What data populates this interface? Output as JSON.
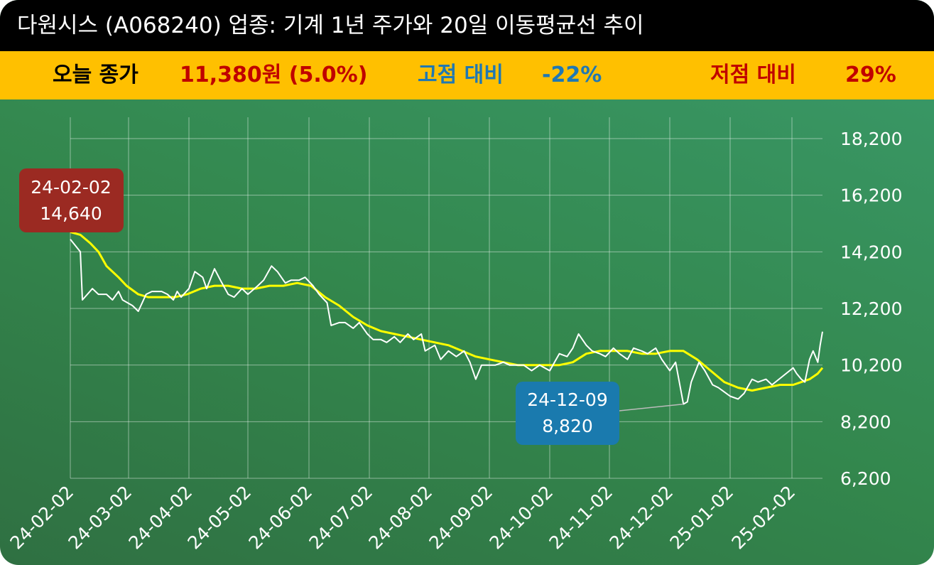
{
  "title": "다원시스 (A068240) 업종: 기계 1년 주가와 20일 이동평균선 추이",
  "stats": {
    "close_label": "오늘 종가",
    "close_value": "11,380원 (5.0%)",
    "high_label": "고점 대비",
    "high_value": "-22%",
    "low_label": "저점 대비",
    "low_value": "29%"
  },
  "colors": {
    "title_bg": "#000000",
    "stats_bg": "#ffc000",
    "close_label": "#000000",
    "close_value": "#c00000",
    "high": "#1f78b4",
    "low": "#c00000",
    "price_line": "#ffffff",
    "ma_line": "#ffff00",
    "high_callout": "#9b2a22",
    "low_callout": "#1a7aae"
  },
  "chart_data": {
    "type": "line",
    "ylim": [
      6200,
      18200
    ],
    "y_ticks": [
      "18,200",
      "16,200",
      "14,200",
      "12,200",
      "10,200",
      "8,200",
      "6,200"
    ],
    "y_tick_values": [
      18200,
      16200,
      14200,
      12200,
      10200,
      8200,
      6200
    ],
    "x_start": "2024-02-02",
    "x_end": "2025-02-28",
    "x_tick_labels": [
      "24-02-02",
      "24-03-02",
      "24-04-02",
      "24-05-02",
      "24-06-02",
      "24-07-02",
      "24-08-02",
      "24-09-02",
      "24-10-02",
      "24-11-02",
      "24-12-02",
      "25-01-02",
      "25-02-02"
    ],
    "x_tick_dates": [
      "2024-02-02",
      "2024-03-02",
      "2024-04-02",
      "2024-05-02",
      "2024-06-02",
      "2024-07-02",
      "2024-08-02",
      "2024-09-02",
      "2024-10-02",
      "2024-11-02",
      "2024-12-02",
      "2025-01-02",
      "2025-02-02"
    ],
    "grid": true,
    "series": [
      {
        "name": "",
        "color": "#ffffff",
        "points": [
          [
            "2024-02-02",
            14640
          ],
          [
            "2024-02-07",
            14200
          ],
          [
            "2024-02-08",
            12500
          ],
          [
            "2024-02-13",
            12900
          ],
          [
            "2024-02-16",
            12700
          ],
          [
            "2024-02-20",
            12700
          ],
          [
            "2024-02-23",
            12500
          ],
          [
            "2024-02-26",
            12800
          ],
          [
            "2024-02-28",
            12500
          ],
          [
            "2024-03-04",
            12300
          ],
          [
            "2024-03-07",
            12100
          ],
          [
            "2024-03-11",
            12700
          ],
          [
            "2024-03-14",
            12800
          ],
          [
            "2024-03-19",
            12800
          ],
          [
            "2024-03-22",
            12700
          ],
          [
            "2024-03-25",
            12500
          ],
          [
            "2024-03-27",
            12800
          ],
          [
            "2024-03-29",
            12600
          ],
          [
            "2024-04-02",
            12900
          ],
          [
            "2024-04-05",
            13500
          ],
          [
            "2024-04-09",
            13300
          ],
          [
            "2024-04-11",
            12900
          ],
          [
            "2024-04-15",
            13600
          ],
          [
            "2024-04-18",
            13200
          ],
          [
            "2024-04-22",
            12700
          ],
          [
            "2024-04-25",
            12600
          ],
          [
            "2024-04-29",
            12900
          ],
          [
            "2024-05-02",
            12700
          ],
          [
            "2024-05-07",
            13000
          ],
          [
            "2024-05-10",
            13200
          ],
          [
            "2024-05-14",
            13700
          ],
          [
            "2024-05-17",
            13500
          ],
          [
            "2024-05-21",
            13100
          ],
          [
            "2024-05-24",
            13200
          ],
          [
            "2024-05-28",
            13200
          ],
          [
            "2024-05-31",
            13300
          ],
          [
            "2024-06-04",
            13000
          ],
          [
            "2024-06-07",
            12700
          ],
          [
            "2024-06-11",
            12400
          ],
          [
            "2024-06-13",
            11600
          ],
          [
            "2024-06-17",
            11700
          ],
          [
            "2024-06-20",
            11700
          ],
          [
            "2024-06-24",
            11500
          ],
          [
            "2024-06-27",
            11700
          ],
          [
            "2024-07-01",
            11300
          ],
          [
            "2024-07-04",
            11100
          ],
          [
            "2024-07-08",
            11100
          ],
          [
            "2024-07-11",
            11000
          ],
          [
            "2024-07-15",
            11200
          ],
          [
            "2024-07-18",
            11000
          ],
          [
            "2024-07-22",
            11300
          ],
          [
            "2024-07-25",
            11100
          ],
          [
            "2024-07-29",
            11300
          ],
          [
            "2024-07-31",
            10700
          ],
          [
            "2024-08-05",
            10900
          ],
          [
            "2024-08-08",
            10400
          ],
          [
            "2024-08-12",
            10700
          ],
          [
            "2024-08-16",
            10500
          ],
          [
            "2024-08-20",
            10700
          ],
          [
            "2024-08-23",
            10300
          ],
          [
            "2024-08-26",
            9700
          ],
          [
            "2024-08-29",
            10200
          ],
          [
            "2024-09-02",
            10200
          ],
          [
            "2024-09-05",
            10200
          ],
          [
            "2024-09-09",
            10300
          ],
          [
            "2024-09-12",
            10200
          ],
          [
            "2024-09-19",
            10200
          ],
          [
            "2024-09-23",
            10000
          ],
          [
            "2024-09-27",
            10200
          ],
          [
            "2024-10-02",
            10000
          ],
          [
            "2024-10-07",
            10600
          ],
          [
            "2024-10-11",
            10500
          ],
          [
            "2024-10-14",
            10800
          ],
          [
            "2024-10-17",
            11300
          ],
          [
            "2024-10-21",
            10900
          ],
          [
            "2024-10-24",
            10700
          ],
          [
            "2024-10-28",
            10600
          ],
          [
            "2024-10-31",
            10500
          ],
          [
            "2024-11-04",
            10800
          ],
          [
            "2024-11-07",
            10600
          ],
          [
            "2024-11-11",
            10400
          ],
          [
            "2024-11-14",
            10800
          ],
          [
            "2024-11-18",
            10700
          ],
          [
            "2024-11-21",
            10600
          ],
          [
            "2024-11-25",
            10800
          ],
          [
            "2024-11-28",
            10400
          ],
          [
            "2024-12-02",
            10000
          ],
          [
            "2024-12-05",
            10300
          ],
          [
            "2024-12-09",
            8820
          ],
          [
            "2024-12-11",
            8900
          ],
          [
            "2024-12-13",
            9600
          ],
          [
            "2024-12-17",
            10300
          ],
          [
            "2024-12-20",
            10000
          ],
          [
            "2024-12-24",
            9500
          ],
          [
            "2024-12-27",
            9400
          ],
          [
            "2025-01-02",
            9100
          ],
          [
            "2025-01-06",
            9000
          ],
          [
            "2025-01-09",
            9200
          ],
          [
            "2025-01-13",
            9700
          ],
          [
            "2025-01-16",
            9600
          ],
          [
            "2025-01-20",
            9700
          ],
          [
            "2025-01-23",
            9500
          ],
          [
            "2025-02-03",
            10100
          ],
          [
            "2025-02-06",
            9900
          ],
          [
            "2025-02-10",
            9700
          ],
          [
            "2025-02-13",
            9600
          ],
          [
            "2025-02-17",
            10400
          ],
          [
            "2025-02-20",
            10700
          ],
          [
            "2025-02-24",
            10300
          ],
          [
            "2025-02-26",
            10900
          ],
          [
            "2025-02-28",
            11380
          ]
        ]
      },
      {
        "name": "",
        "color": "#ffff00",
        "points": [
          [
            "2024-02-02",
            14900
          ],
          [
            "2024-02-07",
            14800
          ],
          [
            "2024-02-12",
            14500
          ],
          [
            "2024-02-16",
            14200
          ],
          [
            "2024-02-20",
            13700
          ],
          [
            "2024-02-26",
            13300
          ],
          [
            "2024-03-01",
            13000
          ],
          [
            "2024-03-07",
            12700
          ],
          [
            "2024-03-12",
            12600
          ],
          [
            "2024-03-20",
            12600
          ],
          [
            "2024-03-26",
            12600
          ],
          [
            "2024-04-01",
            12700
          ],
          [
            "2024-04-08",
            12900
          ],
          [
            "2024-04-15",
            13000
          ],
          [
            "2024-04-22",
            13000
          ],
          [
            "2024-04-29",
            12900
          ],
          [
            "2024-05-06",
            12900
          ],
          [
            "2024-05-13",
            13000
          ],
          [
            "2024-05-20",
            13000
          ],
          [
            "2024-05-27",
            13100
          ],
          [
            "2024-06-03",
            13000
          ],
          [
            "2024-06-10",
            12600
          ],
          [
            "2024-06-17",
            12300
          ],
          [
            "2024-06-24",
            11900
          ],
          [
            "2024-07-01",
            11600
          ],
          [
            "2024-07-08",
            11400
          ],
          [
            "2024-07-15",
            11300
          ],
          [
            "2024-07-22",
            11200
          ],
          [
            "2024-07-29",
            11100
          ],
          [
            "2024-08-05",
            11000
          ],
          [
            "2024-08-12",
            10900
          ],
          [
            "2024-08-19",
            10700
          ],
          [
            "2024-08-26",
            10500
          ],
          [
            "2024-09-02",
            10400
          ],
          [
            "2024-09-09",
            10300
          ],
          [
            "2024-09-16",
            10200
          ],
          [
            "2024-09-23",
            10200
          ],
          [
            "2024-09-30",
            10200
          ],
          [
            "2024-10-07",
            10200
          ],
          [
            "2024-10-14",
            10300
          ],
          [
            "2024-10-21",
            10600
          ],
          [
            "2024-10-28",
            10700
          ],
          [
            "2024-11-04",
            10700
          ],
          [
            "2024-11-11",
            10700
          ],
          [
            "2024-11-18",
            10600
          ],
          [
            "2024-11-25",
            10600
          ],
          [
            "2024-12-02",
            10700
          ],
          [
            "2024-12-09",
            10700
          ],
          [
            "2024-12-16",
            10400
          ],
          [
            "2024-12-23",
            10000
          ],
          [
            "2024-12-30",
            9600
          ],
          [
            "2025-01-06",
            9400
          ],
          [
            "2025-01-13",
            9300
          ],
          [
            "2025-01-20",
            9400
          ],
          [
            "2025-01-27",
            9500
          ],
          [
            "2025-02-03",
            9500
          ],
          [
            "2025-02-10",
            9600
          ],
          [
            "2025-02-17",
            9700
          ],
          [
            "2025-02-24",
            9900
          ],
          [
            "2025-02-28",
            10100
          ]
        ]
      }
    ],
    "annotations": [
      {
        "label_date": "24-02-02",
        "label_value": "14,640",
        "date": "2024-02-02",
        "value": 14640,
        "color": "#9b2a22"
      },
      {
        "label_date": "24-12-09",
        "label_value": "8,820",
        "date": "2024-12-09",
        "value": 8820,
        "color": "#1a7aae"
      }
    ]
  }
}
